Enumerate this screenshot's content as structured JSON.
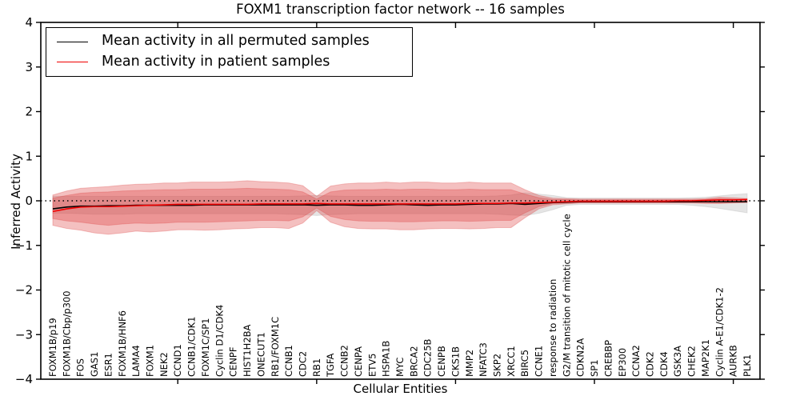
{
  "figure": {
    "title": "FOXM1 transcription factor network -- 16 samples",
    "xlabel": "Cellular Entities",
    "ylabel": "Inferred Activity"
  },
  "chart_data": {
    "type": "line",
    "title": "FOXM1 transcription factor network -- 16 samples",
    "xlabel": "Cellular Entities",
    "ylabel": "Inferred Activity",
    "ylim": [
      -4,
      4
    ],
    "yticks": [
      -4,
      -3,
      -2,
      -1,
      0,
      1,
      2,
      3,
      4
    ],
    "xtick_indices": [
      9,
      19,
      29,
      39,
      49
    ],
    "grid": false,
    "legend_position": "upper left",
    "zero_line": {
      "style": "dotted",
      "color": "#000000",
      "y": 0
    },
    "categories": [
      "FOXM1B/p19",
      "FOXM1B/Cbp/p300",
      "FOS",
      "GAS1",
      "ESR1",
      "FOXM1B/HNF6",
      "LAMA4",
      "FOXM1",
      "NEK2",
      "CCND1",
      "CCNB1/CDK1",
      "FOXM1C/SP1",
      "Cyclin D1/CDK4",
      "CENPF",
      "HIST1H2BA",
      "ONECUT1",
      "RB1/FOXM1C",
      "CCNB1",
      "CDC2",
      "RB1",
      "TGFA",
      "CCNB2",
      "CENPA",
      "ETV5",
      "HSPA1B",
      "MYC",
      "BRCA2",
      "CDC25B",
      "CENPB",
      "CKS1B",
      "MMP2",
      "NFATC3",
      "SKP2",
      "XRCC1",
      "BIRC5",
      "CCNE1",
      "response to radiation",
      "G2/M transition of mitotic cell cycle",
      "CDKN2A",
      "SP1",
      "CREBBP",
      "EP300",
      "CCNA2",
      "CDK2",
      "CDK4",
      "GSK3A",
      "CHEK2",
      "MAP2K1",
      "Cyclin A-E1/CDK1-2",
      "AURKB",
      "PLK1"
    ],
    "series": [
      {
        "name": "Mean activity in all permuted samples",
        "color": "#000000",
        "values": [
          -0.18,
          -0.14,
          -0.12,
          -0.12,
          -0.11,
          -0.11,
          -0.1,
          -0.1,
          -0.1,
          -0.1,
          -0.1,
          -0.09,
          -0.09,
          -0.09,
          -0.09,
          -0.09,
          -0.09,
          -0.09,
          -0.09,
          -0.1,
          -0.09,
          -0.09,
          -0.1,
          -0.1,
          -0.09,
          -0.08,
          -0.09,
          -0.1,
          -0.09,
          -0.09,
          -0.08,
          -0.07,
          -0.07,
          -0.06,
          -0.08,
          -0.06,
          -0.04,
          -0.03,
          -0.02,
          -0.02,
          -0.02,
          -0.02,
          -0.02,
          -0.02,
          -0.02,
          -0.02,
          -0.02,
          -0.02,
          -0.02,
          -0.02,
          -0.02
        ]
      },
      {
        "name": "Mean activity in patient samples",
        "color": "#f00000",
        "values": [
          -0.24,
          -0.18,
          -0.14,
          -0.13,
          -0.13,
          -0.12,
          -0.11,
          -0.1,
          -0.09,
          -0.08,
          -0.08,
          -0.08,
          -0.08,
          -0.08,
          -0.08,
          -0.07,
          -0.07,
          -0.07,
          -0.07,
          -0.06,
          -0.07,
          -0.07,
          -0.07,
          -0.07,
          -0.07,
          -0.07,
          -0.07,
          -0.07,
          -0.07,
          -0.07,
          -0.06,
          -0.06,
          -0.06,
          -0.05,
          -0.05,
          -0.04,
          -0.03,
          -0.02,
          -0.01,
          -0.01,
          -0.01,
          -0.01,
          -0.01,
          -0.01,
          -0.01,
          0.0,
          0.0,
          0.01,
          0.02,
          0.02,
          0.03
        ]
      }
    ],
    "bands": [
      {
        "name": "permuted-samples-range",
        "color": "#a0a0a0",
        "opacity": 0.28,
        "upper": [
          0.1,
          0.1,
          0.1,
          0.1,
          0.1,
          0.1,
          0.1,
          0.1,
          0.1,
          0.1,
          0.1,
          0.1,
          0.1,
          0.1,
          0.1,
          0.1,
          0.1,
          0.1,
          0.11,
          0.12,
          0.11,
          0.1,
          0.1,
          0.1,
          0.1,
          0.1,
          0.1,
          0.1,
          0.1,
          0.1,
          0.1,
          0.1,
          0.11,
          0.13,
          0.18,
          0.15,
          0.12,
          0.07,
          0.06,
          0.06,
          0.06,
          0.06,
          0.06,
          0.06,
          0.06,
          0.06,
          0.07,
          0.08,
          0.11,
          0.14,
          0.16
        ],
        "lower": [
          -0.28,
          -0.28,
          -0.29,
          -0.3,
          -0.3,
          -0.3,
          -0.29,
          -0.29,
          -0.29,
          -0.29,
          -0.29,
          -0.29,
          -0.29,
          -0.29,
          -0.29,
          -0.29,
          -0.29,
          -0.3,
          -0.31,
          -0.33,
          -0.31,
          -0.3,
          -0.29,
          -0.29,
          -0.29,
          -0.29,
          -0.29,
          -0.29,
          -0.29,
          -0.29,
          -0.29,
          -0.29,
          -0.3,
          -0.32,
          -0.33,
          -0.28,
          -0.2,
          -0.1,
          -0.08,
          -0.08,
          -0.08,
          -0.08,
          -0.08,
          -0.08,
          -0.08,
          -0.08,
          -0.1,
          -0.13,
          -0.17,
          -0.22,
          -0.27
        ]
      },
      {
        "name": "patient-samples-outer-band",
        "color": "#dc3c3c",
        "opacity": 0.32,
        "upper": [
          0.13,
          0.22,
          0.28,
          0.3,
          0.32,
          0.35,
          0.37,
          0.38,
          0.4,
          0.4,
          0.42,
          0.42,
          0.42,
          0.43,
          0.45,
          0.43,
          0.42,
          0.4,
          0.34,
          0.1,
          0.33,
          0.38,
          0.4,
          0.4,
          0.42,
          0.4,
          0.42,
          0.42,
          0.4,
          0.4,
          0.42,
          0.4,
          0.4,
          0.4,
          0.25,
          0.12,
          0.06,
          0.05,
          0.04,
          0.04,
          0.04,
          0.04,
          0.04,
          0.04,
          0.04,
          0.04,
          0.04,
          0.05,
          0.08,
          0.07,
          0.05
        ],
        "lower": [
          -0.55,
          -0.62,
          -0.66,
          -0.72,
          -0.75,
          -0.72,
          -0.68,
          -0.7,
          -0.68,
          -0.65,
          -0.65,
          -0.66,
          -0.65,
          -0.63,
          -0.62,
          -0.6,
          -0.6,
          -0.62,
          -0.5,
          -0.22,
          -0.48,
          -0.58,
          -0.62,
          -0.63,
          -0.63,
          -0.65,
          -0.65,
          -0.63,
          -0.62,
          -0.62,
          -0.63,
          -0.62,
          -0.6,
          -0.6,
          -0.38,
          -0.18,
          -0.09,
          -0.07,
          -0.05,
          -0.05,
          -0.05,
          -0.05,
          -0.05,
          -0.05,
          -0.05,
          -0.05,
          -0.05,
          -0.06,
          -0.06,
          -0.05,
          -0.04
        ]
      },
      {
        "name": "patient-samples-inner-band",
        "color": "#dc3c3c",
        "opacity": 0.32,
        "upper": [
          0.06,
          0.12,
          0.17,
          0.19,
          0.2,
          0.22,
          0.23,
          0.24,
          0.25,
          0.25,
          0.26,
          0.26,
          0.26,
          0.27,
          0.28,
          0.27,
          0.26,
          0.25,
          0.2,
          0.04,
          0.2,
          0.24,
          0.25,
          0.25,
          0.26,
          0.25,
          0.26,
          0.26,
          0.25,
          0.25,
          0.26,
          0.25,
          0.25,
          0.25,
          0.15,
          0.07,
          0.03,
          0.03,
          0.02,
          0.02,
          0.02,
          0.02,
          0.02,
          0.02,
          0.02,
          0.02,
          0.02,
          0.03,
          0.05,
          0.04,
          0.03
        ],
        "lower": [
          -0.4,
          -0.45,
          -0.48,
          -0.52,
          -0.55,
          -0.52,
          -0.5,
          -0.51,
          -0.5,
          -0.48,
          -0.48,
          -0.48,
          -0.47,
          -0.46,
          -0.45,
          -0.44,
          -0.44,
          -0.45,
          -0.36,
          -0.16,
          -0.35,
          -0.42,
          -0.45,
          -0.46,
          -0.46,
          -0.47,
          -0.47,
          -0.46,
          -0.45,
          -0.45,
          -0.46,
          -0.45,
          -0.44,
          -0.44,
          -0.27,
          -0.13,
          -0.06,
          -0.05,
          -0.04,
          -0.04,
          -0.04,
          -0.04,
          -0.04,
          -0.04,
          -0.04,
          -0.04,
          -0.04,
          -0.04,
          -0.05,
          -0.04,
          -0.03
        ]
      }
    ]
  }
}
